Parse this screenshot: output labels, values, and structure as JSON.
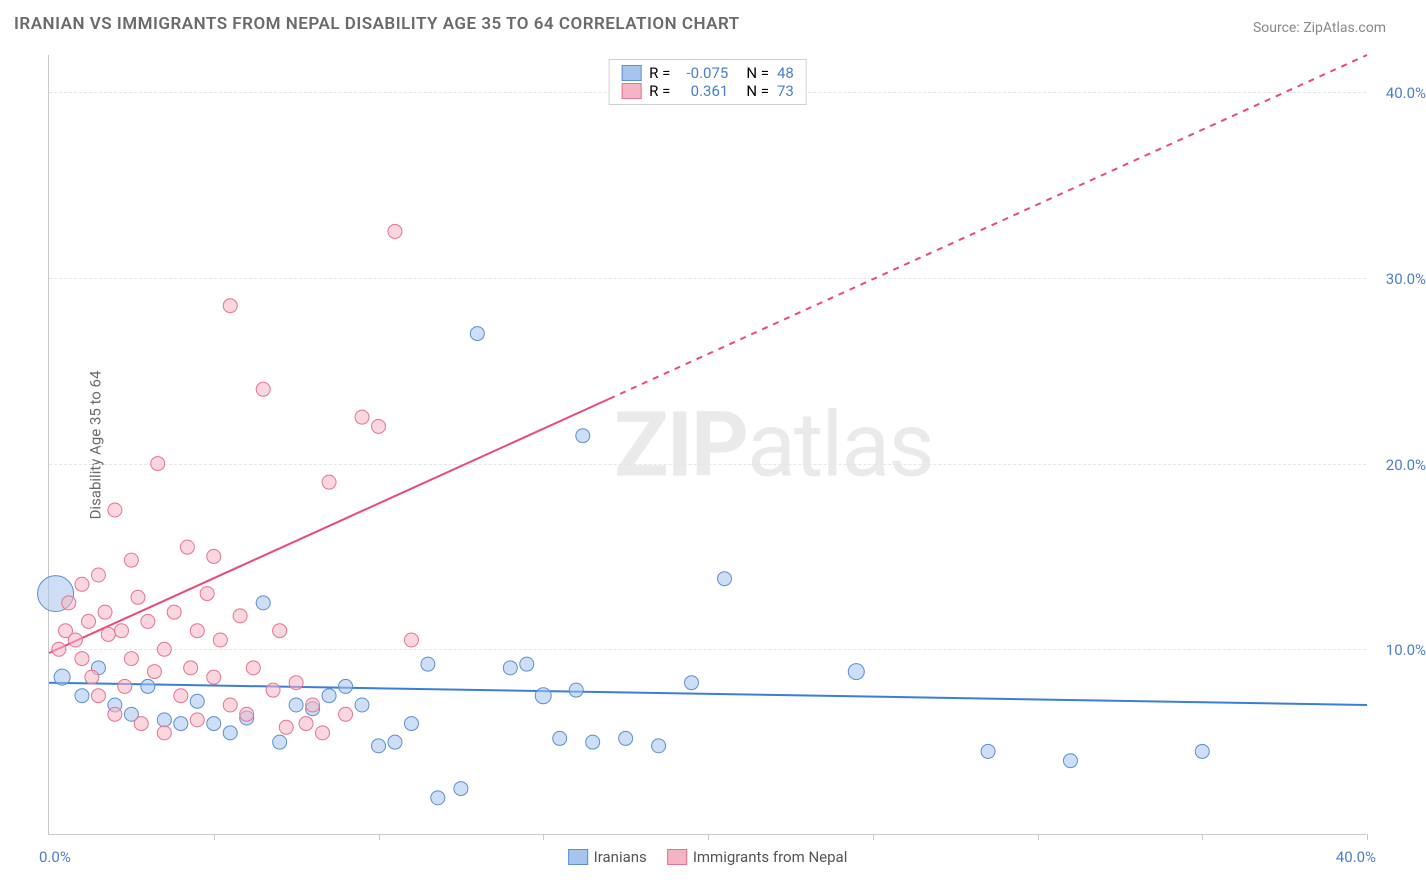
{
  "title": "IRANIAN VS IMMIGRANTS FROM NEPAL DISABILITY AGE 35 TO 64 CORRELATION CHART",
  "source": "Source: ZipAtlas.com",
  "watermark_bold": "ZIP",
  "watermark_rest": "atlas",
  "y_axis_title": "Disability Age 35 to 64",
  "chart": {
    "type": "scatter",
    "xlim": [
      0,
      40
    ],
    "ylim": [
      0,
      42
    ],
    "x_tick_positions": [
      5,
      10,
      15,
      20,
      25,
      30,
      35,
      40
    ],
    "y_gridlines": [
      10,
      20,
      30,
      40
    ],
    "y_tick_labels": [
      "10.0%",
      "20.0%",
      "30.0%",
      "40.0%"
    ],
    "x_axis_left": "0.0%",
    "x_axis_right": "40.0%",
    "axis_label_color": "#4a7fc9",
    "grid_color": "#e5e5e5",
    "series": [
      {
        "name": "Iranians",
        "label": "Iranians",
        "fill": "#a6c5ec",
        "stroke": "#5a8fd4",
        "fill_opacity": 0.55,
        "R": "-0.075",
        "N": "48",
        "trend": {
          "x1": 0,
          "y1": 8.2,
          "x2": 40,
          "y2": 7.0,
          "solid_to_x": 40,
          "color": "#3b7dd8",
          "width": 2
        },
        "points": [
          [
            0.2,
            13.0,
            18
          ],
          [
            0.4,
            8.5,
            8
          ],
          [
            1.0,
            7.5,
            7
          ],
          [
            1.5,
            9.0,
            7
          ],
          [
            2.0,
            7.0,
            7
          ],
          [
            2.5,
            6.5,
            7
          ],
          [
            3.0,
            8.0,
            7
          ],
          [
            3.5,
            6.2,
            7
          ],
          [
            4.0,
            6.0,
            7
          ],
          [
            4.5,
            7.2,
            7
          ],
          [
            5.0,
            6.0,
            7
          ],
          [
            5.5,
            5.5,
            7
          ],
          [
            6.0,
            6.3,
            7
          ],
          [
            6.5,
            12.5,
            7
          ],
          [
            7.0,
            5.0,
            7
          ],
          [
            7.5,
            7.0,
            7
          ],
          [
            8.0,
            6.8,
            7
          ],
          [
            8.5,
            7.5,
            7
          ],
          [
            9.0,
            8.0,
            7
          ],
          [
            9.5,
            7.0,
            7
          ],
          [
            10.0,
            4.8,
            7
          ],
          [
            10.5,
            5.0,
            7
          ],
          [
            11.0,
            6.0,
            7
          ],
          [
            11.5,
            9.2,
            7
          ],
          [
            11.8,
            2.0,
            7
          ],
          [
            12.5,
            2.5,
            7
          ],
          [
            13.0,
            27.0,
            7
          ],
          [
            14.0,
            9.0,
            7
          ],
          [
            14.5,
            9.2,
            7
          ],
          [
            15.0,
            7.5,
            8
          ],
          [
            15.5,
            5.2,
            7
          ],
          [
            16.0,
            7.8,
            7
          ],
          [
            16.2,
            21.5,
            7
          ],
          [
            16.5,
            5.0,
            7
          ],
          [
            17.5,
            5.2,
            7
          ],
          [
            18.5,
            4.8,
            7
          ],
          [
            19.5,
            8.2,
            7
          ],
          [
            20.5,
            13.8,
            7
          ],
          [
            24.5,
            8.8,
            8
          ],
          [
            28.5,
            4.5,
            7
          ],
          [
            31.0,
            4.0,
            7
          ],
          [
            35.0,
            4.5,
            7
          ]
        ]
      },
      {
        "name": "Immigrants from Nepal",
        "label": "Immigrants from Nepal",
        "fill": "#f5b4c4",
        "stroke": "#e6738f",
        "fill_opacity": 0.55,
        "R": "0.361",
        "N": "73",
        "trend": {
          "x1": 0,
          "y1": 9.8,
          "x2": 40,
          "y2": 42.0,
          "solid_to_x": 17,
          "color": "#e84a7a",
          "width": 2
        },
        "points": [
          [
            0.3,
            10.0,
            7
          ],
          [
            0.5,
            11.0,
            7
          ],
          [
            0.6,
            12.5,
            7
          ],
          [
            0.8,
            10.5,
            7
          ],
          [
            1.0,
            9.5,
            7
          ],
          [
            1.0,
            13.5,
            7
          ],
          [
            1.2,
            11.5,
            7
          ],
          [
            1.3,
            8.5,
            7
          ],
          [
            1.5,
            14.0,
            7
          ],
          [
            1.5,
            7.5,
            7
          ],
          [
            1.7,
            12.0,
            7
          ],
          [
            1.8,
            10.8,
            7
          ],
          [
            2.0,
            17.5,
            7
          ],
          [
            2.0,
            6.5,
            7
          ],
          [
            2.2,
            11.0,
            7
          ],
          [
            2.3,
            8.0,
            7
          ],
          [
            2.5,
            14.8,
            7
          ],
          [
            2.5,
            9.5,
            7
          ],
          [
            2.7,
            12.8,
            7
          ],
          [
            2.8,
            6.0,
            7
          ],
          [
            3.0,
            11.5,
            7
          ],
          [
            3.2,
            8.8,
            7
          ],
          [
            3.3,
            20.0,
            7
          ],
          [
            3.5,
            10.0,
            7
          ],
          [
            3.5,
            5.5,
            7
          ],
          [
            3.8,
            12.0,
            7
          ],
          [
            4.0,
            7.5,
            7
          ],
          [
            4.2,
            15.5,
            7
          ],
          [
            4.3,
            9.0,
            7
          ],
          [
            4.5,
            11.0,
            7
          ],
          [
            4.5,
            6.2,
            7
          ],
          [
            4.8,
            13.0,
            7
          ],
          [
            5.0,
            8.5,
            7
          ],
          [
            5.0,
            15.0,
            7
          ],
          [
            5.2,
            10.5,
            7
          ],
          [
            5.5,
            7.0,
            7
          ],
          [
            5.5,
            28.5,
            7
          ],
          [
            5.8,
            11.8,
            7
          ],
          [
            6.0,
            6.5,
            7
          ],
          [
            6.2,
            9.0,
            7
          ],
          [
            6.5,
            24.0,
            7
          ],
          [
            6.8,
            7.8,
            7
          ],
          [
            7.0,
            11.0,
            7
          ],
          [
            7.2,
            5.8,
            7
          ],
          [
            7.5,
            8.2,
            7
          ],
          [
            7.8,
            6.0,
            7
          ],
          [
            8.0,
            7.0,
            7
          ],
          [
            8.3,
            5.5,
            7
          ],
          [
            8.5,
            19.0,
            7
          ],
          [
            9.0,
            6.5,
            7
          ],
          [
            9.5,
            22.5,
            7
          ],
          [
            10.0,
            22.0,
            7
          ],
          [
            10.5,
            32.5,
            7
          ],
          [
            11.0,
            10.5,
            7
          ]
        ]
      }
    ]
  },
  "legend_top": {
    "R_label": "R =",
    "N_label": "N ="
  },
  "swatch": {
    "blue_fill": "#a6c5ec",
    "blue_stroke": "#5a8fd4",
    "pink_fill": "#f5b4c4",
    "pink_stroke": "#e6738f"
  }
}
